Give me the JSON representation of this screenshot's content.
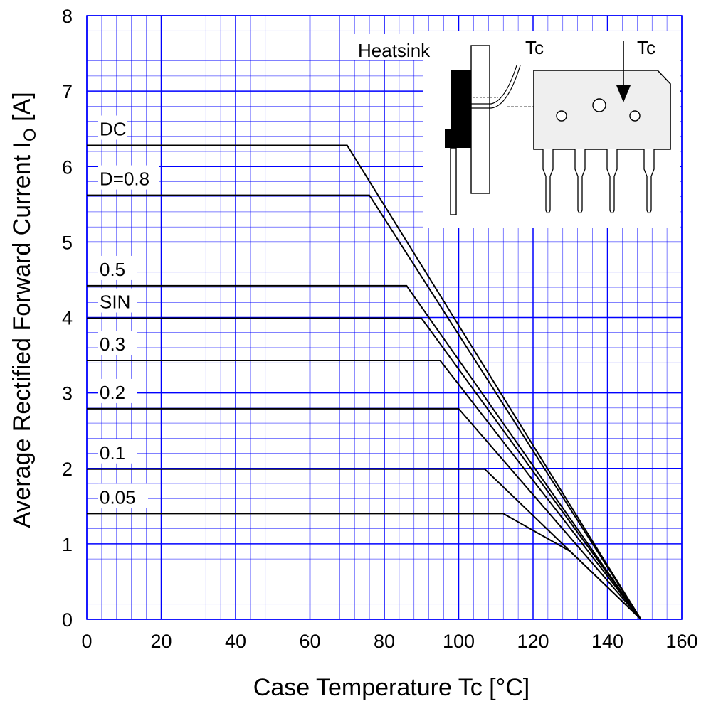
{
  "chart_data": {
    "type": "line",
    "xlabel": "Case Temperature  Tc  [°C]",
    "ylabel": {
      "main": "Average Rectified Forward Current  I",
      "subscript": "O",
      "unit": " [A]"
    },
    "xlim": [
      0,
      160
    ],
    "ylim": [
      0,
      8
    ],
    "x_ticks": [
      0,
      20,
      40,
      60,
      80,
      100,
      120,
      140,
      160
    ],
    "y_ticks": [
      0,
      1,
      2,
      3,
      4,
      5,
      6,
      7,
      8
    ],
    "grid": true,
    "grid_minor_x": 4,
    "grid_minor_y": 0.2,
    "grid_color": "#0000ff",
    "line_color": "#000000",
    "series": [
      {
        "name": "DC",
        "points": [
          [
            0,
            6.28
          ],
          [
            70,
            6.28
          ],
          [
            149,
            0
          ]
        ]
      },
      {
        "name": "D=0.8",
        "points": [
          [
            0,
            5.62
          ],
          [
            76,
            5.62
          ],
          [
            149,
            0
          ]
        ]
      },
      {
        "name": "0.5",
        "points": [
          [
            0,
            4.42
          ],
          [
            86,
            4.42
          ],
          [
            149,
            0
          ]
        ]
      },
      {
        "name": "SIN",
        "points": [
          [
            0,
            3.99
          ],
          [
            90,
            3.99
          ],
          [
            149,
            0
          ]
        ]
      },
      {
        "name": "0.3",
        "points": [
          [
            0,
            3.43
          ],
          [
            95,
            3.43
          ],
          [
            149,
            0
          ]
        ]
      },
      {
        "name": "0.2",
        "points": [
          [
            0,
            2.79
          ],
          [
            100,
            2.79
          ],
          [
            149,
            0
          ]
        ]
      },
      {
        "name": "0.1",
        "points": [
          [
            0,
            1.99
          ],
          [
            107,
            1.99
          ],
          [
            149,
            0
          ]
        ]
      },
      {
        "name": "0.05",
        "points": [
          [
            0,
            1.4
          ],
          [
            112,
            1.4
          ],
          [
            130,
            0.9
          ],
          [
            149,
            0
          ]
        ]
      }
    ],
    "annotations": {
      "heatsink_label": "Heatsink",
      "tc_label_left": "Tc",
      "tc_label_right": "Tc"
    }
  }
}
